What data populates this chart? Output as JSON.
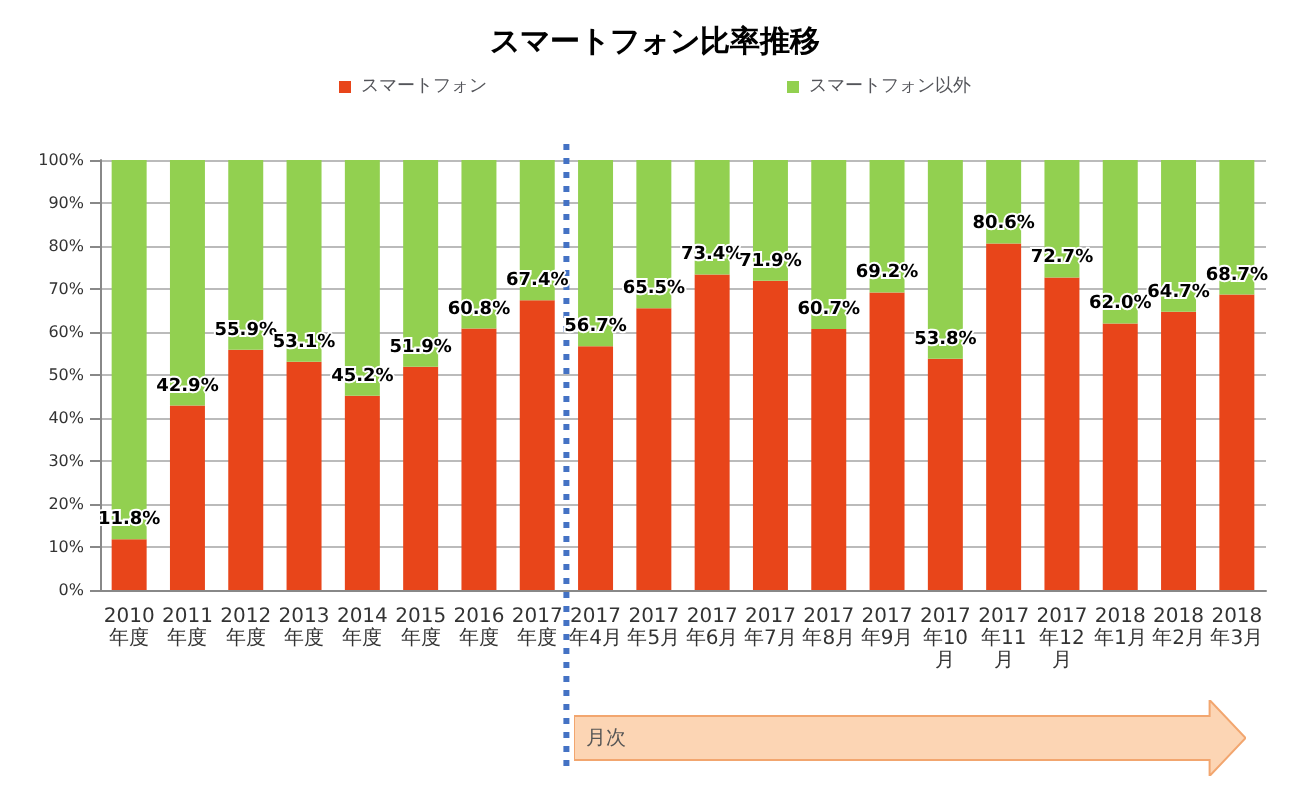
{
  "chart_data": {
    "type": "bar",
    "title": "スマートフォン比率推移",
    "stacked": true,
    "categories": [
      "2010年度",
      "2011年度",
      "2012年度",
      "2013年度",
      "2014年度",
      "2015年度",
      "2016年度",
      "2017年度",
      "2017年4月",
      "2017年5月",
      "2017年6月",
      "2017年7月",
      "2017年8月",
      "2017年9月",
      "2017年10月",
      "2017年11月",
      "2017年12月",
      "2018年1月",
      "2018年2月",
      "2018年3月"
    ],
    "series": [
      {
        "name": "スマートフォン",
        "color": "#e8451a",
        "values": [
          11.8,
          42.9,
          55.9,
          53.1,
          45.2,
          51.9,
          60.8,
          67.4,
          56.7,
          65.5,
          73.4,
          71.9,
          60.7,
          69.2,
          53.8,
          80.6,
          72.7,
          62.0,
          64.7,
          68.7
        ],
        "value_labels": [
          "11.8%",
          "42.9%",
          "55.9%",
          "53.1%",
          "45.2%",
          "51.9%",
          "60.8%",
          "67.4%",
          "56.7%",
          "65.5%",
          "73.4%",
          "71.9%",
          "60.7%",
          "69.2%",
          "53.8%",
          "80.6%",
          "72.7%",
          "62.0%",
          "64.7%",
          "68.7%"
        ]
      },
      {
        "name": "スマートフォン以外",
        "color": "#92d050",
        "values": [
          88.2,
          57.1,
          44.1,
          46.9,
          54.8,
          48.1,
          39.2,
          32.6,
          43.3,
          34.5,
          26.6,
          28.1,
          39.3,
          30.8,
          46.2,
          19.4,
          27.3,
          38.0,
          35.3,
          31.3
        ]
      }
    ],
    "ylim": [
      0,
      100
    ],
    "yticks": [
      {
        "value": 0,
        "label": "0%"
      },
      {
        "value": 10,
        "label": "10%"
      },
      {
        "value": 20,
        "label": "20%"
      },
      {
        "value": 30,
        "label": "30%"
      },
      {
        "value": 40,
        "label": "40%"
      },
      {
        "value": 50,
        "label": "50%"
      },
      {
        "value": 60,
        "label": "60%"
      },
      {
        "value": 70,
        "label": "70%"
      },
      {
        "value": 80,
        "label": "80%"
      },
      {
        "value": 90,
        "label": "90%"
      },
      {
        "value": 100,
        "label": "100%"
      }
    ],
    "grid": "y",
    "legend": "top",
    "ref_lines": [
      {
        "axis": "x",
        "value": "2017年4月",
        "color": "#4472c4",
        "line_style": "dotted"
      }
    ],
    "annotations": [
      "月次"
    ]
  }
}
